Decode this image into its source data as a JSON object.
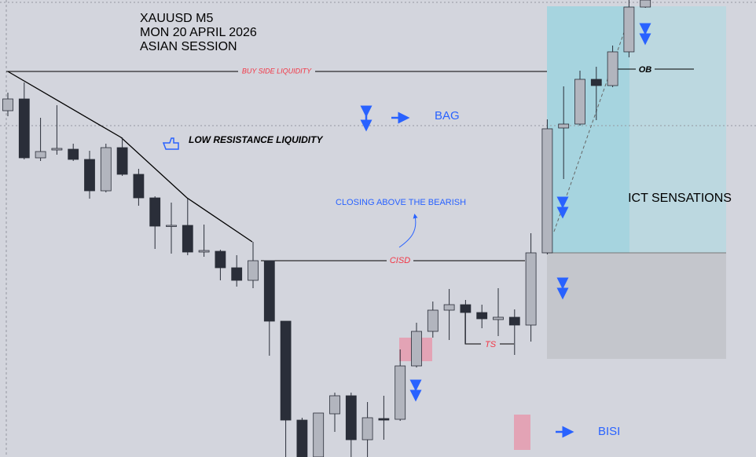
{
  "chart_data": {
    "type": "candlestick",
    "title": [
      "XAUUSD M5",
      "MON 20 APRIL 2026",
      "ASIAN SESSION"
    ],
    "ylim": [
      0,
      582
    ],
    "up_color": "#b2b5be",
    "down_color": "#2a2e39",
    "open": [
      441,
      456,
      381,
      391,
      392,
      379,
      339,
      394,
      360,
      330,
      294,
      295,
      261,
      262,
      241,
      225,
      250,
      173,
      47,
      0,
      55,
      78,
      22,
      49,
      48,
      116,
      160,
      187,
      194,
      184,
      175,
      178,
      168,
      260,
      419,
      424,
      481,
      473,
      516,
      573
    ],
    "high": [
      464,
      477,
      432,
      448,
      399,
      390,
      399,
      407,
      367,
      332,
      324,
      329,
      296,
      264,
      257,
      274,
      250,
      173,
      50,
      56,
      82,
      82,
      70,
      78,
      137,
      171,
      198,
      214,
      200,
      194,
      215,
      188,
      285,
      430,
      472,
      492,
      497,
      524,
      582,
      582
    ],
    "low": [
      434,
      379,
      377,
      385,
      377,
      329,
      337,
      358,
      320,
      265,
      259,
      257,
      255,
      225,
      217,
      215,
      129,
      0,
      0,
      0,
      32,
      0,
      0,
      22,
      46,
      114,
      152,
      149,
      144,
      164,
      154,
      130,
      147,
      258,
      354,
      422,
      429,
      471,
      509,
      572
    ],
    "close": [
      456,
      381,
      389,
      393,
      379,
      339,
      394,
      360,
      330,
      294,
      295,
      261,
      263,
      241,
      225,
      250,
      173,
      47,
      0,
      56,
      78,
      22,
      50,
      47,
      116,
      160,
      187,
      194,
      184,
      176,
      178,
      168,
      260,
      418,
      424,
      481,
      473,
      516,
      573,
      582
    ],
    "annotations": {
      "bsl": "BUY SIDE LIQUIDITY",
      "lrl": "LOW RESISTANCE LIQUIDITY",
      "bag": "BAG",
      "closing": "CLOSING ABOVE THE BEARISH",
      "cisd": "CISD",
      "ts": "TS",
      "ob": "OB",
      "ict": "ICT SENSATIONS",
      "bisi": "BISI"
    }
  }
}
